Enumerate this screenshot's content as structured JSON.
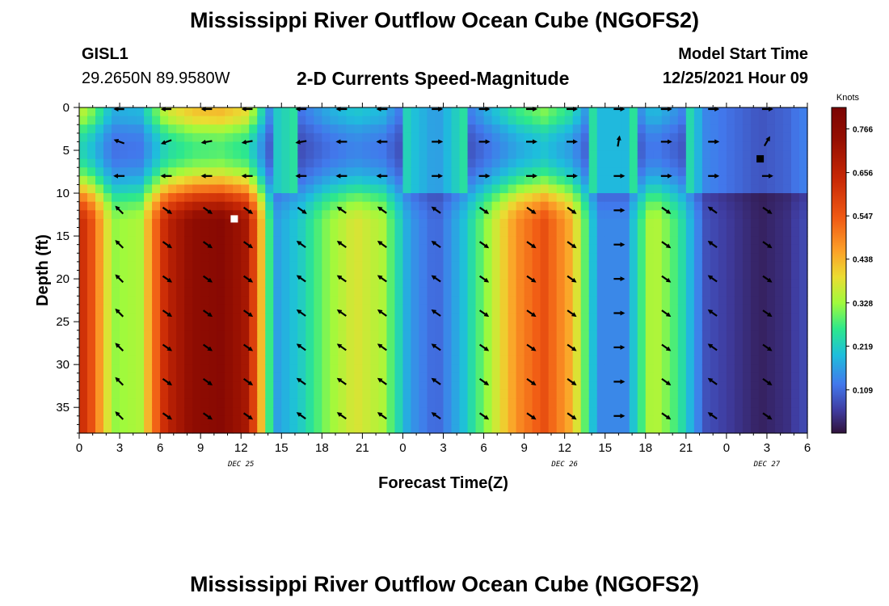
{
  "page": {
    "title": "Mississippi River Outflow Ocean Cube (NGOFS2)",
    "title_repeat": "Mississippi River Outflow Ocean Cube (NGOFS2)",
    "station": "GISL1",
    "coordinates": "29.2650N  89.9580W",
    "subtitle": "2-D Currents Speed-Magnitude",
    "model_start_label": "Model Start Time",
    "model_start_value": "12/25/2021 Hour 09"
  },
  "chart_data": {
    "type": "heatmap",
    "title": "2-D Currents Speed-Magnitude",
    "xlabel": "Forecast Time(Z)",
    "ylabel": "Depth (ft)",
    "x_unit": "hours since 00Z Dec 25",
    "xlim": [
      0,
      54
    ],
    "ylim": [
      0,
      38
    ],
    "y_inverted": true,
    "grid": false,
    "x_ticks": [
      {
        "hour": 0,
        "label": "0"
      },
      {
        "hour": 3,
        "label": "3"
      },
      {
        "hour": 6,
        "label": "6"
      },
      {
        "hour": 9,
        "label": "9"
      },
      {
        "hour": 12,
        "label": "12"
      },
      {
        "hour": 15,
        "label": "15"
      },
      {
        "hour": 18,
        "label": "18"
      },
      {
        "hour": 21,
        "label": "21"
      },
      {
        "hour": 24,
        "label": "0"
      },
      {
        "hour": 27,
        "label": "3"
      },
      {
        "hour": 30,
        "label": "6"
      },
      {
        "hour": 33,
        "label": "9"
      },
      {
        "hour": 36,
        "label": "12"
      },
      {
        "hour": 39,
        "label": "15"
      },
      {
        "hour": 42,
        "label": "18"
      },
      {
        "hour": 45,
        "label": "21"
      },
      {
        "hour": 48,
        "label": "0"
      },
      {
        "hour": 51,
        "label": "3"
      },
      {
        "hour": 54,
        "label": "6"
      }
    ],
    "date_labels": [
      {
        "hour": 12,
        "label": "DEC 25"
      },
      {
        "hour": 36,
        "label": "DEC 26"
      },
      {
        "hour": 51,
        "label": "DEC 27"
      }
    ],
    "y_ticks": [
      0,
      5,
      10,
      15,
      20,
      25,
      30,
      35
    ],
    "colorbar": {
      "unit": "Knots",
      "min": 0.0,
      "max": 0.82,
      "ticks": [
        0.109,
        0.219,
        0.328,
        0.438,
        0.547,
        0.656,
        0.766
      ],
      "tick_labels": [
        "0.109",
        "0.219",
        "0.328",
        "0.438",
        "0.547",
        "0.656",
        "0.766"
      ]
    },
    "time_columns": [
      {
        "hour": 0.5,
        "speed": 0.62
      },
      {
        "hour": 2.5,
        "speed": 0.32
      },
      {
        "hour": 4.5,
        "speed": 0.34
      },
      {
        "hour": 6.5,
        "speed": 0.66
      },
      {
        "hour": 8.5,
        "speed": 0.76
      },
      {
        "hour": 10.5,
        "speed": 0.78
      },
      {
        "hour": 12.5,
        "speed": 0.7
      },
      {
        "hour": 14.5,
        "speed": 0.16
      },
      {
        "hour": 16.5,
        "speed": 0.22
      },
      {
        "hour": 18.5,
        "speed": 0.32
      },
      {
        "hour": 20.5,
        "speed": 0.38
      },
      {
        "hour": 22.5,
        "speed": 0.34
      },
      {
        "hour": 24.5,
        "speed": 0.16
      },
      {
        "hour": 26.5,
        "speed": 0.1
      },
      {
        "hour": 28.5,
        "speed": 0.2
      },
      {
        "hour": 30.5,
        "speed": 0.34
      },
      {
        "hour": 32.5,
        "speed": 0.48
      },
      {
        "hour": 34.5,
        "speed": 0.56
      },
      {
        "hour": 36.5,
        "speed": 0.44
      },
      {
        "hour": 38.5,
        "speed": 0.14
      },
      {
        "hour": 40.5,
        "speed": 0.14
      },
      {
        "hour": 42.5,
        "speed": 0.36
      },
      {
        "hour": 44.5,
        "speed": 0.26
      },
      {
        "hour": 46.5,
        "speed": 0.08
      },
      {
        "hour": 48.5,
        "speed": 0.05
      },
      {
        "hour": 50.5,
        "speed": 0.02
      },
      {
        "hour": 52.5,
        "speed": 0.04
      },
      {
        "hour": 53.5,
        "speed": 0.07
      }
    ],
    "depth_profile": [
      {
        "depth": 0,
        "factor": 0.55
      },
      {
        "depth": 1,
        "factor": 0.55
      },
      {
        "depth": 3,
        "factor": 0.4
      },
      {
        "depth": 5,
        "factor": 0.35
      },
      {
        "depth": 7,
        "factor": 0.42
      },
      {
        "depth": 9,
        "factor": 0.6
      },
      {
        "depth": 11,
        "factor": 0.85
      },
      {
        "depth": 13,
        "factor": 1.0
      },
      {
        "depth": 38,
        "factor": 1.0
      }
    ],
    "arrow_hours": [
      3,
      6.5,
      9.5,
      12.5,
      16.5,
      19.5,
      22.5,
      26.5,
      30,
      33.5,
      36.5,
      40,
      43.5,
      47,
      51
    ],
    "arrow_depths": [
      0,
      4,
      8,
      12,
      16,
      20,
      24,
      28,
      32,
      36
    ],
    "arrow_direction_deg": [
      [
        -160,
        160,
        170,
        170,
        170,
        180,
        180,
        0,
        0,
        0,
        0,
        0,
        0,
        0,
        0
      ],
      [
        -160,
        160,
        170,
        170,
        170,
        180,
        180,
        0,
        0,
        0,
        0,
        -80,
        0,
        0,
        -60
      ],
      [
        180,
        180,
        180,
        180,
        180,
        180,
        180,
        0,
        0,
        0,
        0,
        0,
        0,
        0,
        0
      ],
      [
        -135,
        35,
        35,
        35,
        35,
        -145,
        -145,
        -145,
        35,
        35,
        35,
        0,
        35,
        -145,
        35
      ],
      [
        -135,
        35,
        35,
        35,
        -145,
        -145,
        -145,
        -145,
        35,
        35,
        35,
        0,
        35,
        -145,
        35
      ],
      [
        -135,
        35,
        35,
        35,
        -145,
        -145,
        -145,
        -145,
        35,
        35,
        35,
        0,
        35,
        -145,
        35
      ],
      [
        -135,
        35,
        35,
        35,
        -145,
        -145,
        -145,
        -145,
        35,
        35,
        35,
        0,
        35,
        -145,
        35
      ],
      [
        -135,
        35,
        35,
        35,
        -145,
        -145,
        -145,
        -145,
        35,
        35,
        35,
        0,
        35,
        -145,
        35
      ],
      [
        -135,
        35,
        35,
        35,
        -145,
        -145,
        -145,
        -145,
        35,
        35,
        35,
        0,
        35,
        -145,
        35
      ],
      [
        -135,
        35,
        35,
        35,
        -145,
        -145,
        -145,
        -145,
        35,
        35,
        35,
        0,
        35,
        -145,
        35
      ]
    ],
    "markers": [
      {
        "name": "max-speed-marker",
        "hour": 11.5,
        "depth": 13,
        "color": "#ffffff"
      },
      {
        "name": "min-speed-marker",
        "hour": 50.5,
        "depth": 6,
        "color": "#000000"
      }
    ]
  }
}
